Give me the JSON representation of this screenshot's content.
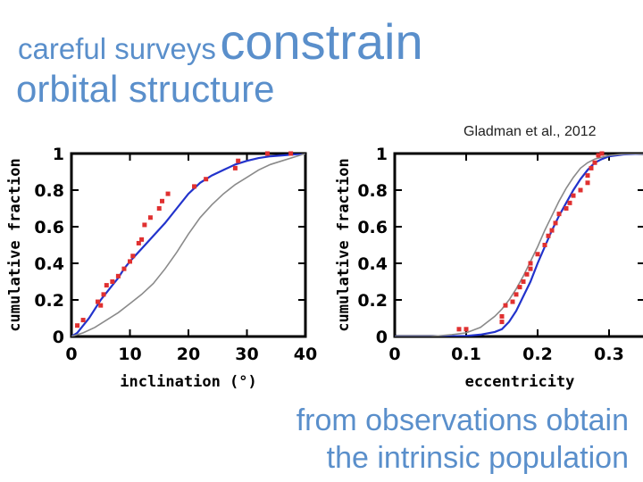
{
  "header": {
    "title_small": "careful surveys",
    "title_big": "constrain",
    "title_line2": "orbital structure",
    "credit": "Gladman et al., 2012"
  },
  "footer": {
    "line1": "from observations obtain",
    "line2": "the intrinsic population"
  },
  "colors": {
    "accent": "#5a8fcb",
    "blue_model": "#2233cc",
    "gray_model": "#8a8a8a",
    "red_data": "#e03030"
  },
  "chart_data": [
    {
      "type": "line",
      "title": "",
      "xlabel": "inclination (°)",
      "ylabel": "cumulative fraction",
      "xlim": [
        0,
        40
      ],
      "ylim": [
        0,
        1
      ],
      "xticks": [
        "0",
        "10",
        "20",
        "30",
        "40"
      ],
      "yticks": [
        "0",
        "0.2",
        "0.4",
        "0.6",
        "0.8",
        "1"
      ],
      "grid": false,
      "series": [
        {
          "style": "line",
          "color": "#2233cc",
          "x": [
            0,
            1,
            2,
            3,
            4,
            5,
            6,
            7,
            8,
            9,
            10,
            12,
            14,
            16,
            18,
            20,
            22,
            24,
            26,
            28,
            30,
            32,
            34,
            36,
            38,
            40
          ],
          "y": [
            0,
            0.02,
            0.06,
            0.1,
            0.15,
            0.2,
            0.24,
            0.28,
            0.32,
            0.37,
            0.41,
            0.48,
            0.55,
            0.62,
            0.7,
            0.78,
            0.84,
            0.88,
            0.91,
            0.94,
            0.96,
            0.975,
            0.985,
            0.99,
            0.995,
            1
          ]
        },
        {
          "style": "line",
          "color": "#8a8a8a",
          "x": [
            0,
            2,
            4,
            6,
            8,
            10,
            12,
            14,
            16,
            18,
            20,
            22,
            24,
            26,
            28,
            30,
            32,
            34,
            36,
            38,
            40
          ],
          "y": [
            0,
            0.02,
            0.05,
            0.09,
            0.13,
            0.18,
            0.23,
            0.29,
            0.37,
            0.46,
            0.56,
            0.65,
            0.72,
            0.78,
            0.83,
            0.87,
            0.91,
            0.94,
            0.96,
            0.98,
            1
          ]
        },
        {
          "style": "points",
          "color": "#e03030",
          "x": [
            1,
            2,
            4.5,
            5,
            5.5,
            6,
            7,
            8,
            9,
            10,
            10.5,
            11.5,
            12,
            12.5,
            13.5,
            15,
            15.5,
            16.5,
            21,
            23,
            28,
            28.5,
            33.5,
            37.5
          ],
          "y": [
            0.06,
            0.09,
            0.19,
            0.17,
            0.23,
            0.28,
            0.3,
            0.33,
            0.37,
            0.41,
            0.44,
            0.51,
            0.53,
            0.61,
            0.65,
            0.7,
            0.74,
            0.78,
            0.82,
            0.86,
            0.92,
            0.96,
            1,
            1
          ]
        }
      ]
    },
    {
      "type": "line",
      "title": "",
      "xlabel": "eccentricity",
      "ylabel": "cumulative fraction",
      "xlim": [
        0,
        0.35
      ],
      "ylim": [
        0,
        1
      ],
      "xticks": [
        "0",
        "0.1",
        "0.2",
        "0.3"
      ],
      "yticks": [
        "0",
        "0.2",
        "0.4",
        "0.6",
        "0.8",
        "1"
      ],
      "grid": false,
      "series": [
        {
          "style": "line",
          "color": "#2233cc",
          "x": [
            0,
            0.05,
            0.1,
            0.12,
            0.14,
            0.15,
            0.16,
            0.17,
            0.18,
            0.19,
            0.2,
            0.21,
            0.22,
            0.23,
            0.24,
            0.25,
            0.26,
            0.27,
            0.28,
            0.29,
            0.3,
            0.32,
            0.35
          ],
          "y": [
            0,
            0,
            0.003,
            0.01,
            0.025,
            0.04,
            0.08,
            0.14,
            0.22,
            0.3,
            0.4,
            0.49,
            0.58,
            0.66,
            0.73,
            0.8,
            0.86,
            0.91,
            0.95,
            0.97,
            0.985,
            0.995,
            1
          ]
        },
        {
          "style": "line",
          "color": "#8a8a8a",
          "x": [
            0,
            0.05,
            0.08,
            0.1,
            0.12,
            0.14,
            0.15,
            0.16,
            0.17,
            0.18,
            0.19,
            0.2,
            0.21,
            0.22,
            0.23,
            0.24,
            0.25,
            0.26,
            0.27,
            0.28,
            0.3,
            0.32,
            0.35
          ],
          "y": [
            0,
            0,
            0.01,
            0.02,
            0.05,
            0.11,
            0.15,
            0.2,
            0.26,
            0.33,
            0.41,
            0.49,
            0.58,
            0.66,
            0.74,
            0.81,
            0.87,
            0.92,
            0.95,
            0.97,
            0.99,
            0.997,
            1
          ]
        },
        {
          "style": "points",
          "color": "#e03030",
          "x": [
            0.09,
            0.1,
            0.15,
            0.15,
            0.155,
            0.165,
            0.17,
            0.175,
            0.18,
            0.185,
            0.19,
            0.19,
            0.2,
            0.21,
            0.215,
            0.22,
            0.225,
            0.23,
            0.24,
            0.245,
            0.25,
            0.26,
            0.27,
            0.27,
            0.275,
            0.28,
            0.285,
            0.29
          ],
          "y": [
            0.04,
            0.04,
            0.08,
            0.11,
            0.17,
            0.19,
            0.23,
            0.27,
            0.3,
            0.34,
            0.37,
            0.4,
            0.45,
            0.5,
            0.55,
            0.58,
            0.62,
            0.67,
            0.7,
            0.73,
            0.77,
            0.8,
            0.84,
            0.88,
            0.92,
            0.95,
            0.99,
            1
          ]
        }
      ]
    }
  ]
}
